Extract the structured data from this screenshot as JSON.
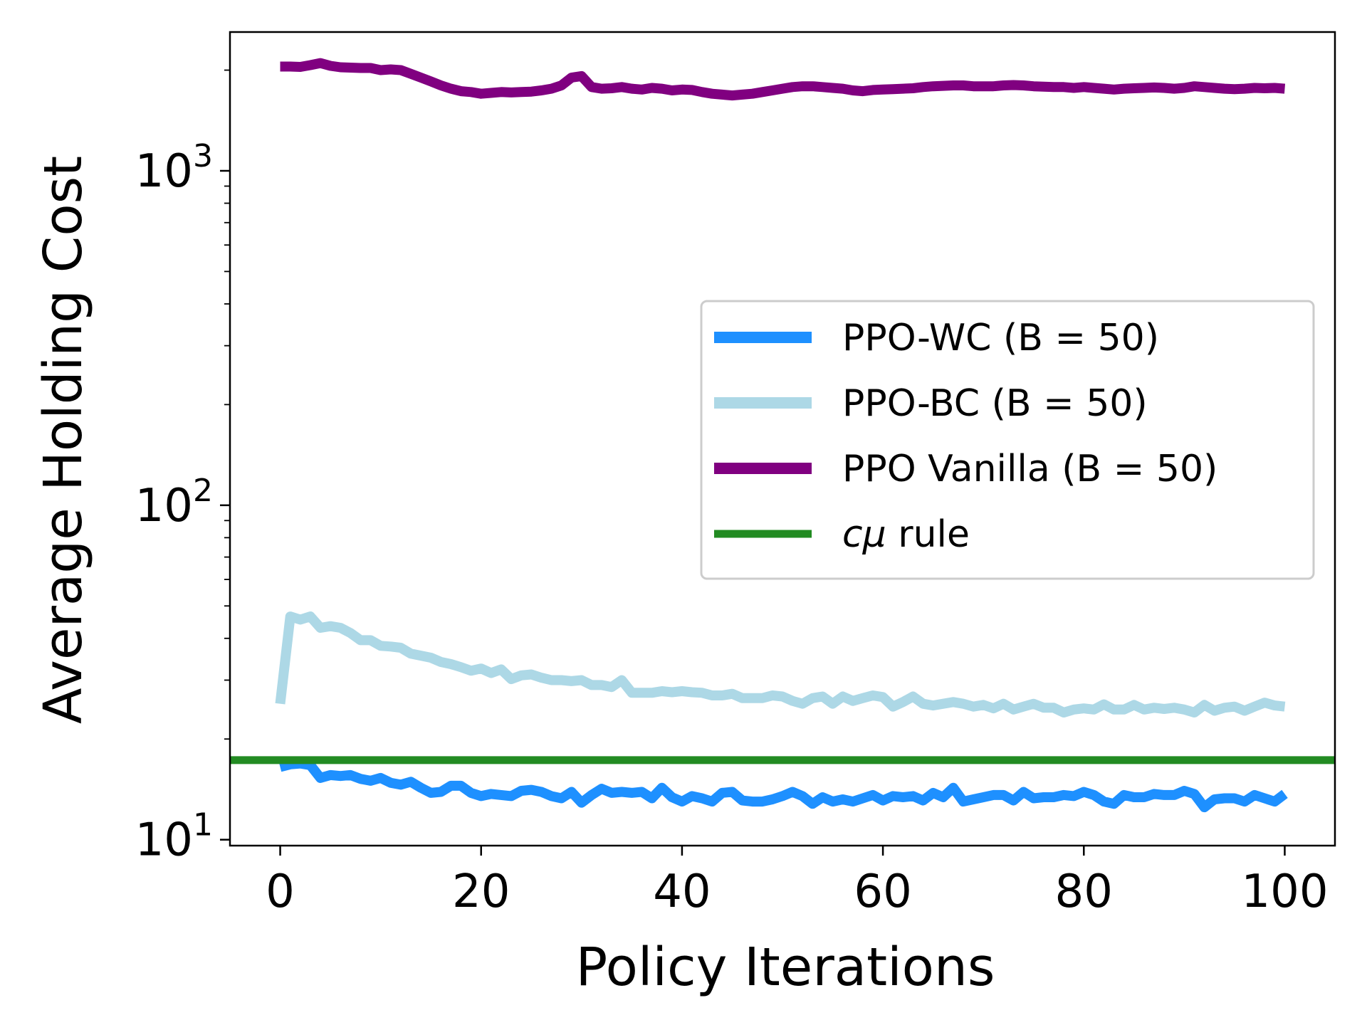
{
  "chart_data": {
    "type": "line",
    "xlabel": "Policy Iterations",
    "ylabel": "Average Holding Cost",
    "yscale": "log",
    "xlim": [
      -5,
      105
    ],
    "ylim": [
      9.6,
      2600
    ],
    "x_ticks": [
      0,
      20,
      40,
      60,
      80,
      100
    ],
    "y_ticks": [
      {
        "value": 10,
        "base": "10",
        "exp": "1"
      },
      {
        "value": 100,
        "base": "10",
        "exp": "2"
      },
      {
        "value": 1000,
        "base": "10",
        "exp": "3"
      }
    ],
    "legend_position": "center-right",
    "series": [
      {
        "name": "PPO-WC (B = 50)",
        "color": "#1e90ff",
        "x": [
          0,
          1,
          2,
          3,
          4,
          5,
          6,
          7,
          8,
          9,
          10,
          11,
          12,
          13,
          14,
          15,
          16,
          17,
          18,
          19,
          20,
          21,
          22,
          23,
          24,
          25,
          26,
          27,
          28,
          29,
          30,
          31,
          32,
          33,
          34,
          35,
          36,
          37,
          38,
          39,
          40,
          41,
          42,
          43,
          44,
          45,
          46,
          47,
          48,
          49,
          50,
          51,
          52,
          53,
          54,
          55,
          56,
          57,
          58,
          59,
          60,
          61,
          62,
          63,
          64,
          65,
          66,
          67,
          68,
          69,
          70,
          71,
          72,
          73,
          74,
          75,
          76,
          77,
          78,
          79,
          80,
          81,
          82,
          83,
          84,
          85,
          86,
          87,
          88,
          89,
          90,
          91,
          92,
          93,
          94,
          95,
          96,
          97,
          98,
          99,
          100
        ],
        "values": [
          16.5,
          16.8,
          16.9,
          16.7,
          15.3,
          15.6,
          15.5,
          15.6,
          15.2,
          15.0,
          15.3,
          14.8,
          14.6,
          14.9,
          14.3,
          13.8,
          13.9,
          14.5,
          14.5,
          13.8,
          13.5,
          13.7,
          13.6,
          13.5,
          14.0,
          14.1,
          13.9,
          13.5,
          13.3,
          13.9,
          12.9,
          13.6,
          14.2,
          13.8,
          13.9,
          13.8,
          13.9,
          13.3,
          14.3,
          13.4,
          13.0,
          13.5,
          13.3,
          13.0,
          13.8,
          13.9,
          13.1,
          13.0,
          13.0,
          13.2,
          13.5,
          13.9,
          13.5,
          12.8,
          13.4,
          13.0,
          13.2,
          13.0,
          13.3,
          13.6,
          13.1,
          13.5,
          13.4,
          13.5,
          13.1,
          13.8,
          13.4,
          14.3,
          13.0,
          13.2,
          13.4,
          13.6,
          13.6,
          13.1,
          13.9,
          13.3,
          13.4,
          13.4,
          13.6,
          13.5,
          13.9,
          13.6,
          13.0,
          12.8,
          13.6,
          13.4,
          13.4,
          13.7,
          13.6,
          13.6,
          14.0,
          13.7,
          12.5,
          13.2,
          13.3,
          13.3,
          13.0,
          13.6,
          13.3,
          13.0,
          13.7
        ]
      },
      {
        "name": "PPO-BC (B = 50)",
        "color": "#add8e6",
        "x": [
          0,
          1,
          2,
          3,
          4,
          5,
          6,
          7,
          8,
          9,
          10,
          11,
          12,
          13,
          14,
          15,
          16,
          17,
          18,
          19,
          20,
          21,
          22,
          23,
          24,
          25,
          26,
          27,
          28,
          29,
          30,
          31,
          32,
          33,
          34,
          35,
          36,
          37,
          38,
          39,
          40,
          41,
          42,
          43,
          44,
          45,
          46,
          47,
          48,
          49,
          50,
          51,
          52,
          53,
          54,
          55,
          56,
          57,
          58,
          59,
          60,
          61,
          62,
          63,
          64,
          65,
          66,
          67,
          68,
          69,
          70,
          71,
          72,
          73,
          74,
          75,
          76,
          77,
          78,
          79,
          80,
          81,
          82,
          83,
          84,
          85,
          86,
          87,
          88,
          89,
          90,
          91,
          92,
          93,
          94,
          95,
          96,
          97,
          98,
          99,
          100
        ],
        "values": [
          25.5,
          46.5,
          45.5,
          46.5,
          43.0,
          43.5,
          43.0,
          41.5,
          39.5,
          39.5,
          38.0,
          37.8,
          37.5,
          36.0,
          35.5,
          35.0,
          34.0,
          33.5,
          32.8,
          32.0,
          32.5,
          31.5,
          32.3,
          30.2,
          31.0,
          31.2,
          30.5,
          30.0,
          30.0,
          29.8,
          30.0,
          29.0,
          29.0,
          28.6,
          30.0,
          27.5,
          27.5,
          27.5,
          27.8,
          27.6,
          27.8,
          27.6,
          27.5,
          27.0,
          27.0,
          27.3,
          26.5,
          26.5,
          26.5,
          27.0,
          26.8,
          26.0,
          25.5,
          26.5,
          26.8,
          25.5,
          26.8,
          26.0,
          26.5,
          27.0,
          26.7,
          25.0,
          25.8,
          26.8,
          25.5,
          25.2,
          25.5,
          25.8,
          25.5,
          25.0,
          25.3,
          24.7,
          25.5,
          24.5,
          25.0,
          25.5,
          24.8,
          24.8,
          24.0,
          24.5,
          24.7,
          24.5,
          25.4,
          24.5,
          24.5,
          25.3,
          24.5,
          24.8,
          24.6,
          24.8,
          24.5,
          24.0,
          25.3,
          24.3,
          24.8,
          25.0,
          24.3,
          25.0,
          25.7,
          25.2,
          25.0
        ]
      },
      {
        "name": "PPO Vanilla (B = 50)",
        "color": "#800080",
        "x": [
          0,
          1,
          2,
          3,
          4,
          5,
          6,
          7,
          8,
          9,
          10,
          11,
          12,
          13,
          14,
          15,
          16,
          17,
          18,
          19,
          20,
          21,
          22,
          23,
          24,
          25,
          26,
          27,
          28,
          29,
          30,
          31,
          32,
          33,
          34,
          35,
          36,
          37,
          38,
          39,
          40,
          41,
          42,
          43,
          44,
          45,
          46,
          47,
          48,
          49,
          50,
          51,
          52,
          53,
          54,
          55,
          56,
          57,
          58,
          59,
          60,
          61,
          62,
          63,
          64,
          65,
          66,
          67,
          68,
          69,
          70,
          71,
          72,
          73,
          74,
          75,
          76,
          77,
          78,
          79,
          80,
          81,
          82,
          83,
          84,
          85,
          86,
          87,
          88,
          89,
          90,
          91,
          92,
          93,
          94,
          95,
          96,
          97,
          98,
          99,
          100
        ],
        "values": [
          2050,
          2050,
          2045,
          2070,
          2100,
          2060,
          2040,
          2035,
          2030,
          2030,
          2000,
          2010,
          2000,
          1950,
          1900,
          1850,
          1800,
          1760,
          1730,
          1720,
          1700,
          1710,
          1720,
          1715,
          1720,
          1725,
          1740,
          1760,
          1800,
          1900,
          1920,
          1780,
          1760,
          1765,
          1780,
          1760,
          1750,
          1770,
          1760,
          1740,
          1750,
          1745,
          1720,
          1700,
          1690,
          1680,
          1690,
          1700,
          1720,
          1740,
          1760,
          1780,
          1790,
          1790,
          1780,
          1770,
          1760,
          1740,
          1730,
          1745,
          1750,
          1755,
          1760,
          1765,
          1780,
          1790,
          1795,
          1800,
          1800,
          1790,
          1790,
          1790,
          1800,
          1805,
          1800,
          1790,
          1785,
          1780,
          1780,
          1770,
          1780,
          1770,
          1760,
          1750,
          1760,
          1765,
          1770,
          1775,
          1770,
          1760,
          1770,
          1790,
          1780,
          1770,
          1760,
          1755,
          1760,
          1770,
          1765,
          1770,
          1760
        ]
      },
      {
        "name": "cμ rule",
        "legend_italic": "cμ",
        "legend_rest": " rule",
        "color": "#228b22",
        "type": "hline",
        "value": 17.3
      }
    ]
  }
}
